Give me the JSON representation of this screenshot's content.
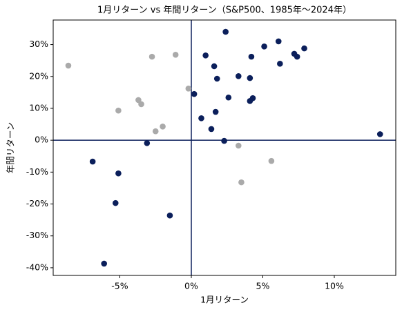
{
  "chart_data": {
    "type": "scatter",
    "title": "1月リターン vs 年間リターン（S&P500、1985年〜2024年）",
    "x_label": "1月リターン",
    "y_label": "年間リターン",
    "xlim": [
      -9.66,
      14.3
    ],
    "ylim": [
      -42.4,
      37.7
    ],
    "xticks": [
      {
        "value": -5,
        "label": "-5%"
      },
      {
        "value": 0,
        "label": "0%"
      },
      {
        "value": 5,
        "label": "5%"
      },
      {
        "value": 10,
        "label": "10%"
      }
    ],
    "yticks": [
      {
        "value": -40,
        "label": "-40%"
      },
      {
        "value": -30,
        "label": "-30%"
      },
      {
        "value": -20,
        "label": "-20%"
      },
      {
        "value": -10,
        "label": "-10%"
      },
      {
        "value": 0,
        "label": "0%"
      },
      {
        "value": 10,
        "label": "10%"
      },
      {
        "value": 20,
        "label": "20%"
      },
      {
        "value": 30,
        "label": "30%"
      }
    ],
    "negative_tick_color": "#e8190f",
    "zero_lines": true,
    "zero_line_color": "#0b1f5b",
    "series": [
      {
        "color": "#aaaaaa",
        "x": [
          -8.6,
          -2.75,
          -1.1,
          -0.2,
          -3.7,
          -3.5,
          -5.1,
          -2.0,
          -2.5,
          3.3,
          5.6,
          3.5
        ],
        "values": [
          23.4,
          26.2,
          26.8,
          16.2,
          12.6,
          11.3,
          9.3,
          4.3,
          2.8,
          -1.7,
          -6.5,
          -13.2
        ]
      },
      {
        "color": "#0b1f5b",
        "x": [
          2.4,
          6.1,
          5.1,
          7.9,
          7.2,
          7.4,
          1.0,
          4.2,
          6.2,
          1.6,
          3.3,
          4.1,
          1.8,
          0.2,
          2.6,
          4.3,
          4.1,
          1.7,
          0.7,
          1.4,
          13.2,
          2.3,
          -3.1,
          -6.9,
          -5.1,
          -5.3,
          -1.5,
          -6.1
        ],
        "values": [
          34.0,
          31.0,
          29.4,
          28.8,
          27.1,
          26.2,
          26.6,
          26.2,
          24.0,
          23.2,
          20.1,
          19.5,
          19.3,
          14.5,
          13.4,
          13.2,
          12.3,
          8.9,
          6.9,
          3.5,
          1.9,
          -0.2,
          -0.9,
          -6.7,
          -10.4,
          -19.7,
          -23.6,
          -38.7
        ]
      }
    ]
  }
}
